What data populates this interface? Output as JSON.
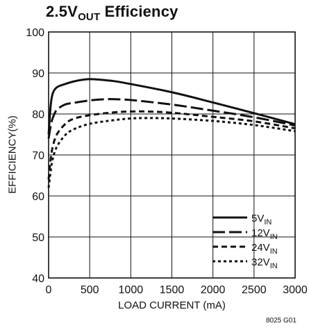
{
  "chart_data": {
    "type": "line",
    "title_main": "2.5V",
    "title_sub": "OUT",
    "title_rest": " Efficiency",
    "xlabel": "LOAD CURRENT (mA)",
    "ylabel": "EFFICIENCY(%)",
    "xlim": [
      0,
      3000
    ],
    "ylim": [
      40,
      100
    ],
    "xticks": [
      0,
      500,
      1000,
      1500,
      2000,
      2500,
      3000
    ],
    "yticks": [
      40,
      50,
      60,
      70,
      80,
      90,
      100
    ],
    "grid": true,
    "legend_position": "bottom-right",
    "series": [
      {
        "name": "5V",
        "name_sub": "IN",
        "dash": "solid",
        "x": [
          0,
          25,
          50,
          100,
          200,
          300,
          400,
          500,
          600,
          800,
          1000,
          1500,
          2000,
          2500,
          3000
        ],
        "y": [
          75,
          82,
          85,
          86.5,
          87.3,
          87.9,
          88.3,
          88.5,
          88.4,
          88.0,
          87.3,
          85.3,
          82.8,
          80.2,
          77.5
        ]
      },
      {
        "name": "12V",
        "name_sub": "IN",
        "dash": "longdash",
        "x": [
          0,
          25,
          50,
          100,
          200,
          300,
          500,
          700,
          800,
          1000,
          1500,
          2000,
          2500,
          3000
        ],
        "y": [
          74,
          77,
          79,
          81,
          82.3,
          82.7,
          83.3,
          83.6,
          83.6,
          83.4,
          82.3,
          80.8,
          79.2,
          77.2
        ]
      },
      {
        "name": "24V",
        "name_sub": "IN",
        "dash": "dash",
        "x": [
          0,
          25,
          50,
          100,
          200,
          300,
          500,
          800,
          1000,
          1200,
          1500,
          2000,
          2500,
          3000
        ],
        "y": [
          64,
          69,
          72,
          75,
          77.5,
          78.8,
          79.7,
          80.4,
          80.6,
          80.6,
          80.3,
          79.3,
          78.2,
          76.5
        ]
      },
      {
        "name": "32V",
        "name_sub": "IN",
        "dash": "dot",
        "x": [
          0,
          25,
          50,
          100,
          200,
          300,
          500,
          800,
          1000,
          1200,
          1500,
          2000,
          2500,
          3000
        ],
        "y": [
          62,
          66,
          69,
          72,
          74.8,
          76.2,
          77.6,
          78.5,
          78.9,
          79.0,
          78.9,
          78.3,
          77.3,
          75.8
        ]
      }
    ]
  },
  "footnote": "8025 G01"
}
